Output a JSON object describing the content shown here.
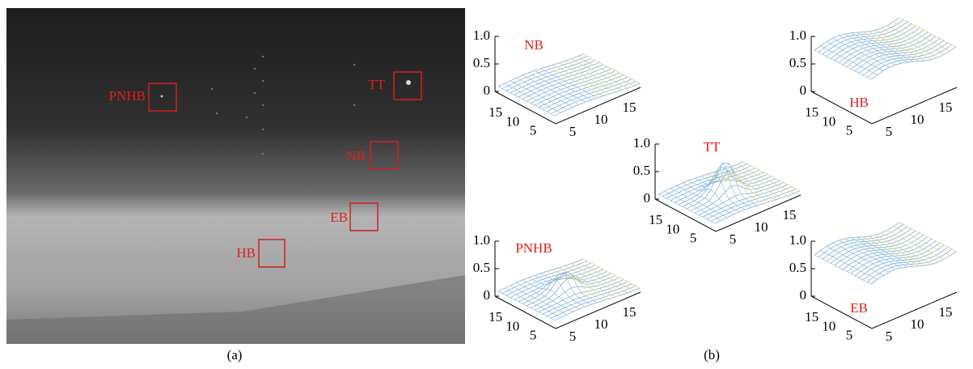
{
  "panel_a": {
    "caption": "(a)",
    "regions": [
      {
        "label": "PNHB"
      },
      {
        "label": "TT"
      },
      {
        "label": "NB"
      },
      {
        "label": "EB"
      },
      {
        "label": "HB"
      }
    ]
  },
  "panel_b": {
    "caption": "(b)",
    "plots": [
      {
        "label": "NB",
        "zticks": [
          {
            "value": 1,
            "label": "1.0"
          },
          0.5,
          0
        ],
        "left_ticks": [
          15,
          10,
          5
        ],
        "right_ticks": [
          5,
          10,
          15
        ]
      },
      {
        "label": "HB",
        "zticks": [
          {
            "value": 1,
            "label": "1.0"
          },
          0.5,
          0
        ],
        "left_ticks": [
          15,
          10,
          5
        ],
        "right_ticks": [
          5,
          10,
          15
        ]
      },
      {
        "label": "TT",
        "zticks": [
          {
            "value": 1,
            "label": "1.0"
          },
          0.5,
          0
        ],
        "left_ticks": [
          15,
          10,
          5
        ],
        "right_ticks": [
          5,
          10,
          15
        ]
      },
      {
        "label": "PNHB",
        "zticks": [
          {
            "value": 1,
            "label": "1.0"
          },
          0.5,
          0
        ],
        "left_ticks": [
          15,
          10,
          5
        ],
        "right_ticks": [
          5,
          10,
          15
        ]
      },
      {
        "label": "EB",
        "zticks": [
          {
            "value": 1,
            "label": "1.0"
          },
          0.5,
          0
        ],
        "left_ticks": [
          15,
          10,
          5
        ],
        "right_ticks": [
          5,
          10,
          15
        ]
      }
    ]
  }
}
